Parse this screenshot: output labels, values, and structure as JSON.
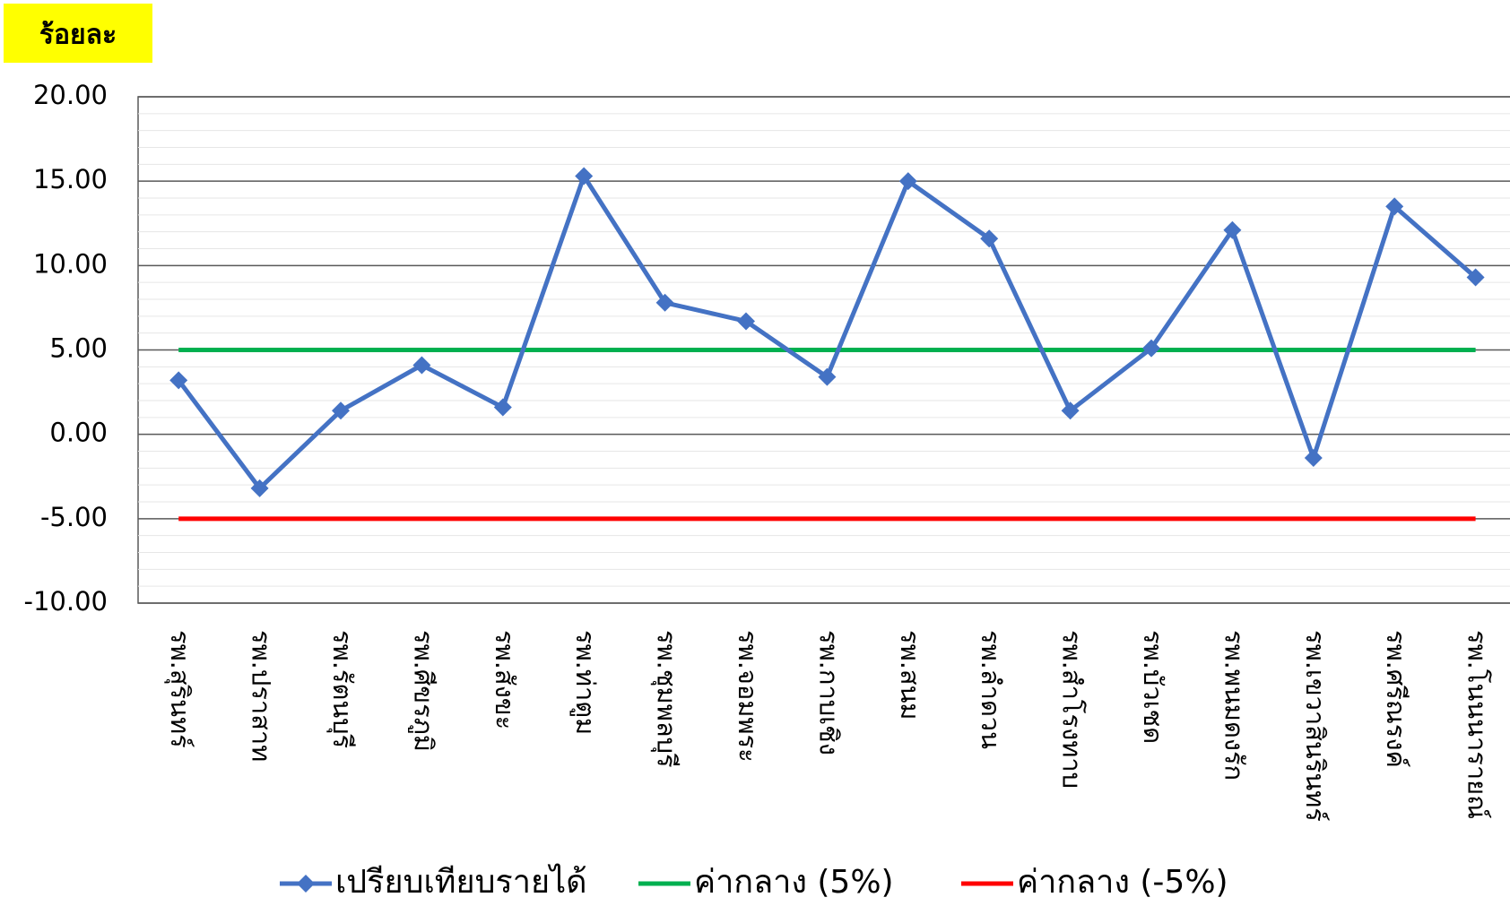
{
  "chart_data": {
    "type": "line",
    "y_axis_label": "ร้อยละ",
    "categories": [
      "รพ.สุรินทร์",
      "รพ.ปราสาท",
      "รพ.รัตนบุรี",
      "รพ.ศีขรภูมิ",
      "รพ.สังขะ",
      "รพ.ท่าตูม",
      "รพ.ชุมพลบุรี",
      "รพ.จอมพระ",
      "รพ.กาบเชิง",
      "รพ.สนม",
      "รพ.ลำดวน",
      "รพ.สำโรงทาบ",
      "รพ.บัวเชด",
      "รพ.พนมดงรัก",
      "รพ.เขวาสินรินทร์",
      "รพ.ศรีณรงค์",
      "รพ.โนนนารายณ์"
    ],
    "series": [
      {
        "name": "เปรียบเทียบรายได้",
        "color": "#4472c4",
        "marker": "diamond",
        "values": [
          3.2,
          -3.2,
          1.4,
          4.1,
          1.6,
          15.3,
          7.8,
          6.7,
          3.4,
          15.0,
          11.6,
          1.4,
          5.1,
          12.1,
          -1.4,
          13.5,
          9.3
        ]
      },
      {
        "name": "ค่ากลาง (5%)",
        "color": "#00b050",
        "values": [
          5,
          5,
          5,
          5,
          5,
          5,
          5,
          5,
          5,
          5,
          5,
          5,
          5,
          5,
          5,
          5,
          5
        ]
      },
      {
        "name": "ค่ากลาง (-5%)",
        "color": "#ff0000",
        "values": [
          -5,
          -5,
          -5,
          -5,
          -5,
          -5,
          -5,
          -5,
          -5,
          -5,
          -5,
          -5,
          -5,
          -5,
          -5,
          -5,
          -5
        ]
      }
    ],
    "ylim": [
      -10,
      20
    ],
    "yticks": [
      {
        "value": -10,
        "label": "-10.00"
      },
      {
        "value": -5,
        "label": "-5.00"
      },
      {
        "value": 0,
        "label": "0.00"
      },
      {
        "value": 5,
        "label": "5.00"
      },
      {
        "value": 10,
        "label": "10.00"
      },
      {
        "value": 15,
        "label": "15.00"
      },
      {
        "value": 20,
        "label": "20.00"
      }
    ],
    "grid": true,
    "legend": "bottom"
  }
}
